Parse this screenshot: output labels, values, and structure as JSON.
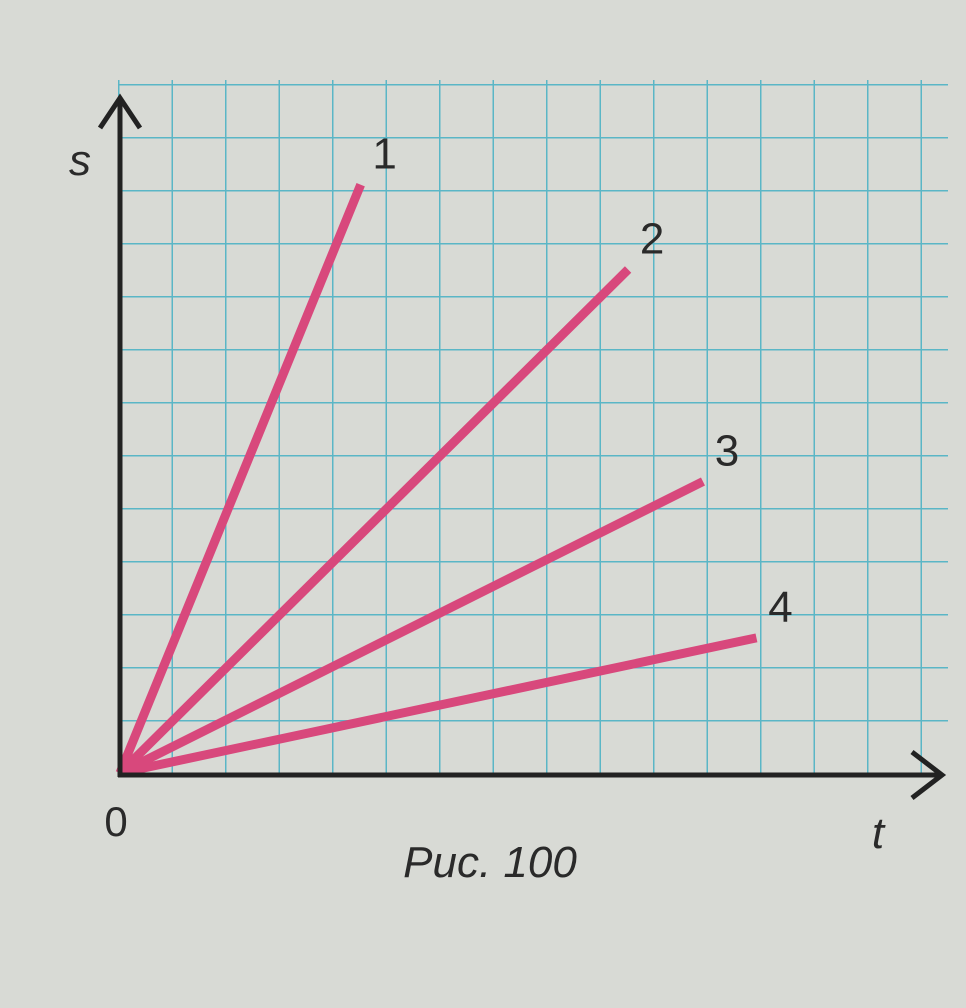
{
  "chart_data": {
    "type": "line",
    "x_label": "t",
    "y_label": "s",
    "origin_label": "0",
    "caption": "Рис. 100",
    "xlim": [
      0,
      15.5
    ],
    "ylim": [
      0,
      13
    ],
    "series": [
      {
        "name": "1",
        "color": "#d8487c",
        "x": [
          0,
          4.5
        ],
        "values": [
          0,
          11.1
        ]
      },
      {
        "name": "2",
        "color": "#d8487c",
        "x": [
          0,
          9.5
        ],
        "values": [
          0,
          9.5
        ]
      },
      {
        "name": "3",
        "color": "#d8487c",
        "x": [
          0,
          10.9
        ],
        "values": [
          0,
          5.5
        ]
      },
      {
        "name": "4",
        "color": "#d8487c",
        "x": [
          0,
          11.9
        ],
        "values": [
          0,
          2.55
        ]
      }
    ]
  }
}
